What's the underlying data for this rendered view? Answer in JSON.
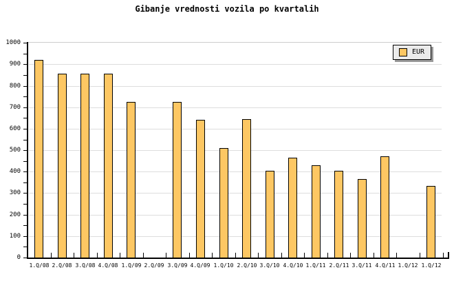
{
  "title": "Gibanje vrednosti vozila po kvartalih",
  "legend": {
    "label": "EUR"
  },
  "colors": {
    "bar_fill": "#FDC763",
    "bar_border": "#000000",
    "grid": "#DDDDDD",
    "frame": "#CCCCCC",
    "axis": "#000000",
    "legend_bg": "#EBEBEB",
    "legend_shadow": "#999999",
    "background": "#FFFFFF"
  },
  "chart_data": {
    "type": "bar",
    "title": "Gibanje vrednosti vozila po kvartalih",
    "categories": [
      "1.Q/08",
      "2.Q/08",
      "3.Q/08",
      "4.Q/08",
      "1.Q/09",
      "2.Q/09",
      "3.Q/09",
      "4.Q/09",
      "1.Q/10",
      "2.Q/10",
      "3.Q/10",
      "4.Q/10",
      "1.Q/11",
      "2.Q/11",
      "3.Q/11",
      "4.Q/11",
      "1.Q/12",
      "1.Q/12"
    ],
    "series": [
      {
        "name": "EUR",
        "values": [
          920,
          855,
          855,
          855,
          725,
          null,
          725,
          640,
          510,
          645,
          405,
          465,
          430,
          405,
          365,
          470,
          null,
          335
        ]
      }
    ],
    "xlabel": "",
    "ylabel": "",
    "ylim": [
      0,
      1000
    ],
    "yticks": [
      0,
      100,
      200,
      300,
      400,
      500,
      600,
      700,
      800,
      900,
      1000
    ],
    "ytick_minor_step": 50,
    "grid": "horizontal",
    "legend_position": "top-right",
    "missing_categories": [
      "2.Q/09",
      "1.Q/12"
    ]
  }
}
